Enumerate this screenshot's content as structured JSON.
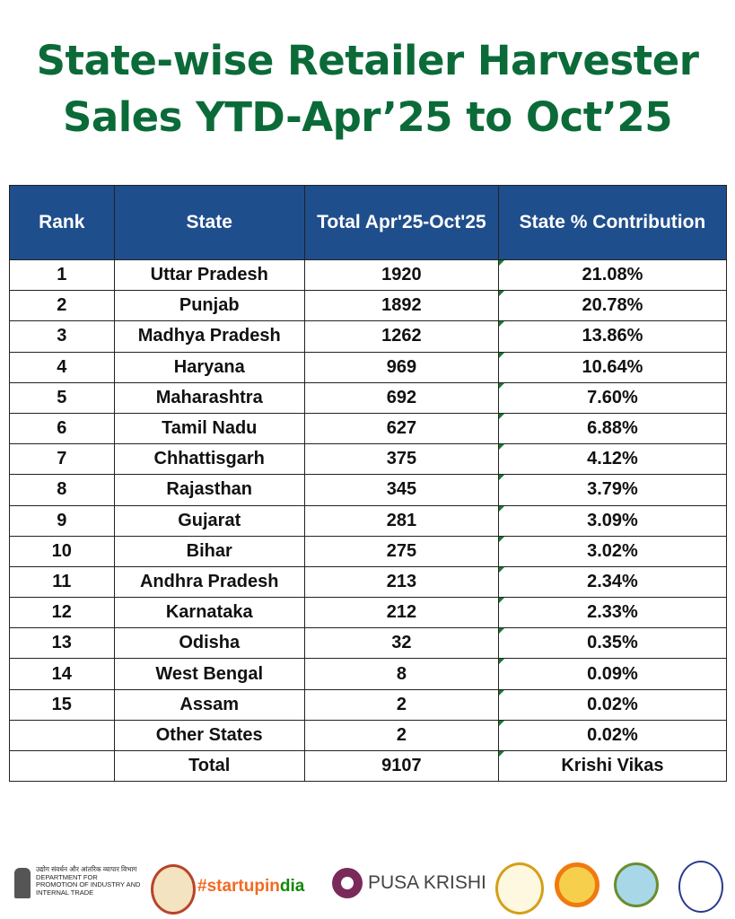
{
  "title": {
    "line1": "State-wise Retailer Harvester",
    "line2": "Sales YTD-Apr’25 to Oct’25"
  },
  "table": {
    "headers": [
      "Rank",
      "State",
      "Total Apr'25-Oct'25",
      "State % Contribution"
    ],
    "rows": [
      [
        "1",
        "Uttar Pradesh",
        "1920",
        "21.08%"
      ],
      [
        "2",
        "Punjab",
        "1892",
        "20.78%"
      ],
      [
        "3",
        "Madhya Pradesh",
        "1262",
        "13.86%"
      ],
      [
        "4",
        "Haryana",
        "969",
        "10.64%"
      ],
      [
        "5",
        "Maharashtra",
        "692",
        "7.60%"
      ],
      [
        "6",
        "Tamil Nadu",
        "627",
        "6.88%"
      ],
      [
        "7",
        "Chhattisgarh",
        "375",
        "4.12%"
      ],
      [
        "8",
        "Rajasthan",
        "345",
        "3.79%"
      ],
      [
        "9",
        "Gujarat",
        "281",
        "3.09%"
      ],
      [
        "10",
        "Bihar",
        "275",
        "3.02%"
      ],
      [
        "11",
        "Andhra Pradesh",
        "213",
        "2.34%"
      ],
      [
        "12",
        "Karnataka",
        "212",
        "2.33%"
      ],
      [
        "13",
        "Odisha",
        "32",
        "0.35%"
      ],
      [
        "14",
        "West Bengal",
        "8",
        "0.09%"
      ],
      [
        "15",
        "Assam",
        "2",
        "0.02%"
      ],
      [
        "",
        "Other States",
        "2",
        "0.02%"
      ],
      [
        "",
        "Total",
        "9107",
        "Krishi Vikas"
      ]
    ]
  },
  "footer": {
    "dpiit": {
      "hindi": "उद्योग संवर्धन और आंतरिक व्यापार विभाग",
      "line1": "DEPARTMENT FOR",
      "line2": "PROMOTION OF INDUSTRY AND",
      "line3": "INTERNAL TRADE"
    },
    "startup_a": "#startupin",
    "startup_b": "dia",
    "pusa": "PUSA KRISHI"
  },
  "colors": {
    "title": "#0b6b38",
    "header_bg": "#1f4e8c",
    "header_text": "#ffffff"
  }
}
